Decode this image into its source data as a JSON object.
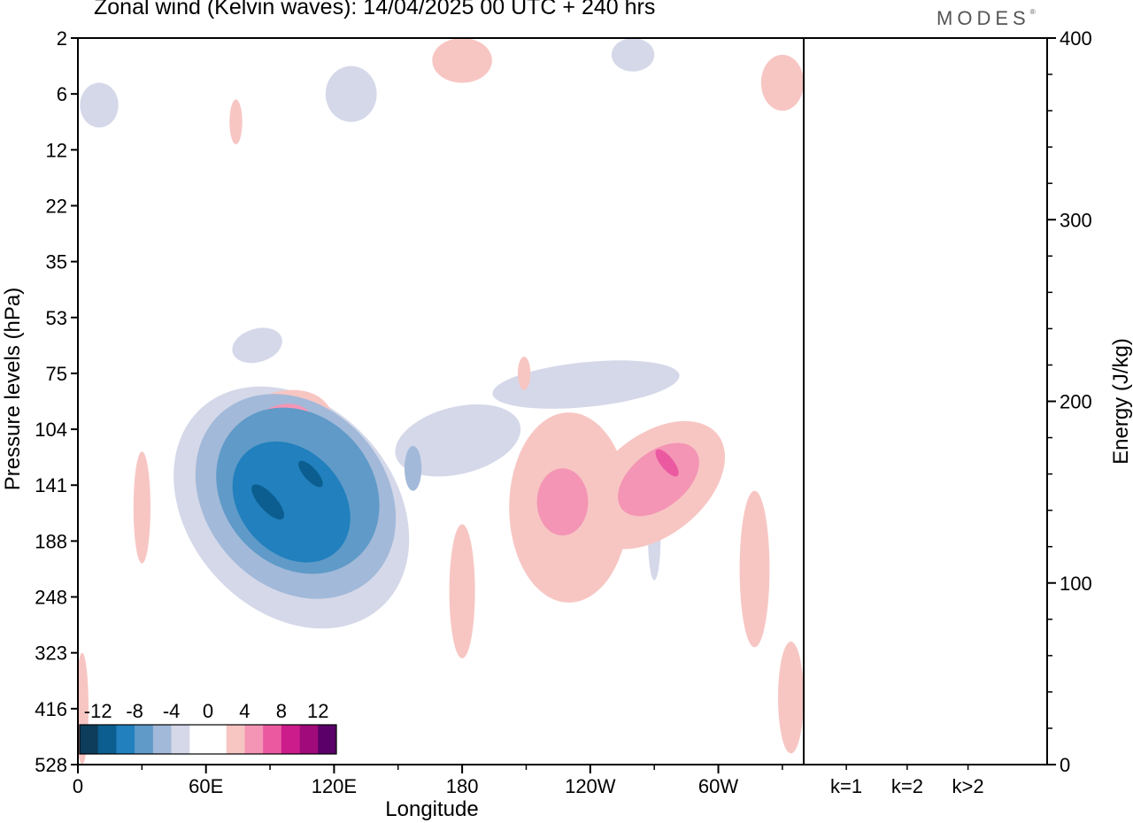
{
  "header": {
    "title": "Zonal wind (Kelvin waves):  14/04/2025  00 UTC  + 240 hrs",
    "brand": "MODES",
    "brand_mark": "®"
  },
  "chart_data": [
    {
      "type": "heatmap",
      "xlabel": "Longitude",
      "ylabel": "Pressure levels (hPa)",
      "x_ticks": [
        "0",
        "60E",
        "120E",
        "180",
        "120W",
        "60W"
      ],
      "x_tick_degrees": [
        0,
        60,
        120,
        180,
        240,
        300
      ],
      "xlim": [
        0,
        340
      ],
      "y_ticks": [
        2,
        6,
        12,
        22,
        35,
        53,
        75,
        104,
        141,
        188,
        248,
        323,
        416,
        528
      ],
      "colorbar": {
        "labels": [
          "-12",
          "-8",
          "-4",
          "0",
          "4",
          "8",
          "12"
        ],
        "colors": [
          "#0e3d5c",
          "#0b5e8f",
          "#2180bd",
          "#5f9ac8",
          "#a2b9d9",
          "#d4d8e9",
          "#ffffff",
          "#ffffff",
          "#f7c6c3",
          "#f495b5",
          "#eb5aa1",
          "#cc1c8b",
          "#a00a7a",
          "#5a0068"
        ]
      },
      "features": [
        {
          "sign": "negative",
          "level": 1,
          "lon": 100,
          "level_index": 8.4,
          "dlon": 48,
          "dlev": 2.4,
          "tilt": -0.9
        },
        {
          "sign": "negative",
          "level": 2,
          "lon": 102,
          "level_index": 8.2,
          "dlon": 42,
          "dlev": 2.0,
          "tilt": -0.9
        },
        {
          "sign": "negative",
          "level": 3,
          "lon": 103,
          "level_index": 8.1,
          "dlon": 35,
          "dlev": 1.6,
          "tilt": -0.9
        },
        {
          "sign": "negative",
          "level": 4,
          "lon": 100,
          "level_index": 8.3,
          "dlon": 24,
          "dlev": 1.2,
          "tilt": -0.9
        },
        {
          "sign": "negative",
          "level": 5,
          "lon": 89,
          "level_index": 8.3,
          "dlon": 4,
          "dlev": 0.4,
          "tilt": -0.9
        },
        {
          "sign": "negative",
          "level": 5,
          "lon": 109,
          "level_index": 7.8,
          "dlon": 3,
          "dlev": 0.3,
          "tilt": -0.9
        },
        {
          "sign": "negative",
          "level": 1,
          "lon": 178,
          "level_index": 7.2,
          "dlon": 30,
          "dlev": 0.6,
          "tilt": -0.25
        },
        {
          "sign": "negative",
          "level": 1,
          "lon": 238,
          "level_index": 6.2,
          "dlon": 44,
          "dlev": 0.4,
          "tilt": -0.1
        },
        {
          "sign": "negative",
          "level": 2,
          "lon": 157,
          "level_index": 7.7,
          "dlon": 4,
          "dlev": 0.4,
          "tilt": 0
        },
        {
          "sign": "negative",
          "level": 1,
          "lon": 84,
          "level_index": 5.5,
          "dlon": 12,
          "dlev": 0.3,
          "tilt": -0.3
        },
        {
          "sign": "negative",
          "level": 1,
          "lon": 128,
          "level_index": 1.0,
          "dlon": 12,
          "dlev": 0.5,
          "tilt": 0
        },
        {
          "sign": "negative",
          "level": 1,
          "lon": 10,
          "level_index": 1.2,
          "dlon": 9,
          "dlev": 0.4,
          "tilt": 0
        },
        {
          "sign": "negative",
          "level": 1,
          "lon": 260,
          "level_index": 0.3,
          "dlon": 10,
          "dlev": 0.3,
          "tilt": 0
        },
        {
          "sign": "negative",
          "level": 1,
          "lon": 270,
          "level_index": 8.9,
          "dlon": 3,
          "dlev": 0.8,
          "tilt": 0
        },
        {
          "sign": "positive",
          "level": 1,
          "lon": 92,
          "level_index": 7.2,
          "dlon": 30,
          "dlev": 0.8,
          "tilt": -0.6
        },
        {
          "sign": "positive",
          "level": 2,
          "lon": 94,
          "level_index": 7.1,
          "dlon": 18,
          "dlev": 0.5,
          "tilt": -0.6
        },
        {
          "sign": "positive",
          "level": 1,
          "lon": 230,
          "level_index": 8.4,
          "dlon": 28,
          "dlev": 1.7,
          "tilt": 0
        },
        {
          "sign": "positive",
          "level": 2,
          "lon": 227,
          "level_index": 8.3,
          "dlon": 12,
          "dlev": 0.6,
          "tilt": 0
        },
        {
          "sign": "positive",
          "level": 1,
          "lon": 270,
          "level_index": 8.0,
          "dlon": 38,
          "dlev": 0.9,
          "tilt": -0.8
        },
        {
          "sign": "positive",
          "level": 2,
          "lon": 272,
          "level_index": 7.9,
          "dlon": 22,
          "dlev": 0.5,
          "tilt": -0.8
        },
        {
          "sign": "positive",
          "level": 3,
          "lon": 276,
          "level_index": 7.6,
          "dlon": 3,
          "dlev": 0.3,
          "tilt": -0.8
        },
        {
          "sign": "positive",
          "level": 1,
          "lon": 180,
          "level_index": 9.9,
          "dlon": 6,
          "dlev": 1.2,
          "tilt": 0
        },
        {
          "sign": "positive",
          "level": 1,
          "lon": 30,
          "level_index": 8.4,
          "dlon": 4,
          "dlev": 1.0,
          "tilt": 0
        },
        {
          "sign": "positive",
          "level": 1,
          "lon": 317,
          "level_index": 9.5,
          "dlon": 7,
          "dlev": 1.4,
          "tilt": 0
        },
        {
          "sign": "positive",
          "level": 1,
          "lon": 334,
          "level_index": 11.8,
          "dlon": 6,
          "dlev": 1.0,
          "tilt": 0
        },
        {
          "sign": "positive",
          "level": 1,
          "lon": 2,
          "level_index": 12.0,
          "dlon": 3,
          "dlev": 1.0,
          "tilt": 0
        },
        {
          "sign": "positive",
          "level": 1,
          "lon": 330,
          "level_index": 0.8,
          "dlon": 10,
          "dlev": 0.5,
          "tilt": 0
        },
        {
          "sign": "positive",
          "level": 1,
          "lon": 180,
          "level_index": 0.4,
          "dlon": 14,
          "dlev": 0.4,
          "tilt": 0
        },
        {
          "sign": "positive",
          "level": 1,
          "lon": 74,
          "level_index": 1.5,
          "dlon": 3,
          "dlev": 0.4,
          "tilt": 0
        },
        {
          "sign": "positive",
          "level": 1,
          "lon": 209,
          "level_index": 6.0,
          "dlon": 3,
          "dlev": 0.3,
          "tilt": 0
        }
      ]
    },
    {
      "type": "bar",
      "ylabel": "Energy (J/kg)",
      "categories": [
        "k=1",
        "k=2",
        "k>2"
      ],
      "values": [
        0.5,
        0.5,
        0.5
      ],
      "ylim": [
        0,
        400
      ],
      "y_ticks": [
        0,
        100,
        200,
        300,
        400
      ]
    }
  ]
}
